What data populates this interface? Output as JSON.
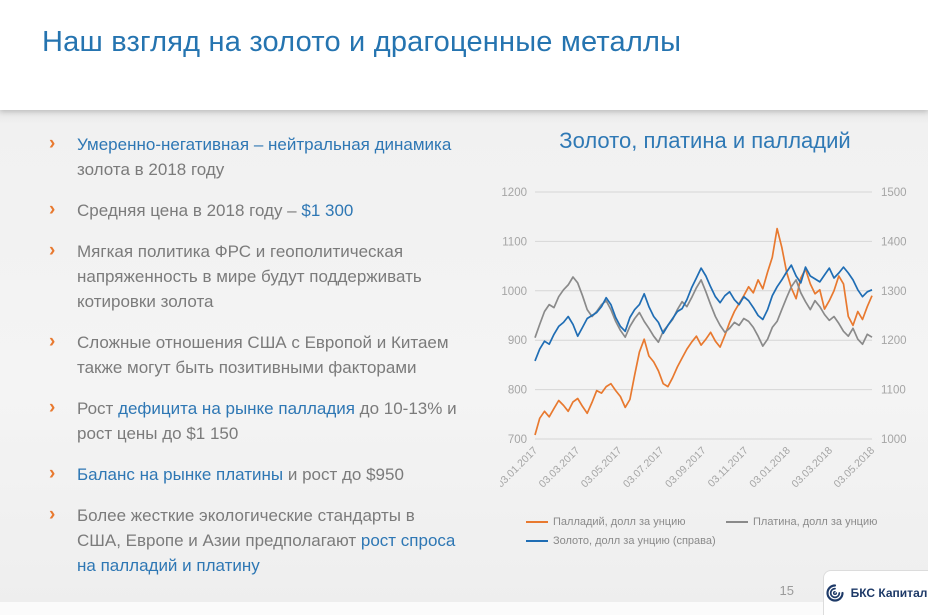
{
  "slide": {
    "title": "Наш взгляд на золото и драгоценные металлы",
    "page_number": "15",
    "logo_text": "БКС Капитал",
    "bullet_marker": "›"
  },
  "colors": {
    "accent_blue": "#2e77b4",
    "title_blue": "#2574b0",
    "text_gray": "#7b7b7b",
    "bullet_orange": "#e8792f",
    "logo_navy": "#1e3a68",
    "axis_label_gray": "#a5a5a5",
    "gridline_gray": "#d6d6d6"
  },
  "bullets": [
    {
      "segments": [
        {
          "t": "Умеренно-негативная – нейтральная динамика ",
          "c": "blue"
        },
        {
          "t": "золота в 2018 году",
          "c": "gray"
        }
      ]
    },
    {
      "segments": [
        {
          "t": "Средняя цена в 2018 году – ",
          "c": "gray"
        },
        {
          "t": "$1 300",
          "c": "blue"
        }
      ]
    },
    {
      "segments": [
        {
          "t": "Мягкая политика ФРС и геополитическая напряженность в мире будут поддерживать котировки золота",
          "c": "gray"
        }
      ]
    },
    {
      "segments": [
        {
          "t": "Сложные отношения США с Европой и Китаем также могут быть позитивными факторами",
          "c": "gray"
        }
      ]
    },
    {
      "segments": [
        {
          "t": "Рост ",
          "c": "gray"
        },
        {
          "t": "дефицита на рынке палладия",
          "c": "blue"
        },
        {
          "t": " до 10-13% и рост цены до $1 150",
          "c": "gray"
        }
      ]
    },
    {
      "segments": [
        {
          "t": "Баланс на рынке платины",
          "c": "blue"
        },
        {
          "t": " и рост до $950",
          "c": "gray"
        }
      ]
    },
    {
      "segments": [
        {
          "t": "Более жесткие экологические стандарты в США, Европе и Азии предполагают ",
          "c": "gray"
        },
        {
          "t": "рост спроса на палладий и платину",
          "c": "blue"
        }
      ]
    }
  ],
  "chart_data": {
    "type": "line",
    "title": "Золото, платина и палладий",
    "grid": true,
    "legend_position": "bottom",
    "x_tick_labels": [
      "03.01.2017",
      "03.03.2017",
      "03.05.2017",
      "03.07.2017",
      "03.09.2017",
      "03.11.2017",
      "03.01.2018",
      "03.03.2018",
      "03.05.2018"
    ],
    "left_axis": {
      "min": 700,
      "max": 1200,
      "ticks": [
        700,
        800,
        900,
        1000,
        1100,
        1200
      ]
    },
    "right_axis": {
      "min": 1000,
      "max": 1500,
      "ticks": [
        1000,
        1100,
        1200,
        1300,
        1400,
        1500
      ]
    },
    "series": [
      {
        "name": "Палладий, долл за унцию",
        "axis": "left",
        "color": "#e8792f",
        "values": [
          708,
          742,
          756,
          745,
          762,
          778,
          768,
          756,
          775,
          782,
          766,
          752,
          774,
          798,
          793,
          806,
          812,
          798,
          786,
          764,
          780,
          830,
          876,
          902,
          868,
          856,
          838,
          812,
          806,
          824,
          846,
          864,
          882,
          896,
          908,
          890,
          902,
          916,
          898,
          886,
          910,
          936,
          958,
          974,
          990,
          1008,
          996,
          1022,
          1004,
          1038,
          1068,
          1126,
          1088,
          1038,
          1006,
          984,
          1026,
          1044,
          1014,
          994,
          1002,
          963,
          980,
          1000,
          1030,
          1014,
          948,
          930,
          958,
          942,
          968,
          990
        ]
      },
      {
        "name": "Платина, долл за унцию",
        "axis": "left",
        "color": "#8a8a8a",
        "values": [
          905,
          932,
          958,
          972,
          966,
          988,
          1002,
          1012,
          1028,
          1016,
          990,
          962,
          948,
          958,
          972,
          980,
          962,
          938,
          920,
          906,
          928,
          944,
          956,
          938,
          924,
          908,
          896,
          918,
          930,
          942,
          962,
          978,
          968,
          986,
          1006,
          1022,
          998,
          972,
          948,
          930,
          916,
          924,
          936,
          930,
          944,
          938,
          926,
          908,
          888,
          902,
          926,
          938,
          962,
          986,
          1008,
          1022,
          996,
          978,
          962,
          980,
          968,
          952,
          940,
          948,
          934,
          918,
          908,
          924,
          902,
          892,
          912,
          906
        ]
      },
      {
        "name": "Золото, долл за унцию (справа)",
        "axis": "right",
        "color": "#1f6db4",
        "values": [
          1158,
          1182,
          1198,
          1192,
          1212,
          1228,
          1236,
          1248,
          1232,
          1208,
          1226,
          1244,
          1250,
          1256,
          1268,
          1286,
          1272,
          1246,
          1228,
          1218,
          1246,
          1262,
          1272,
          1294,
          1268,
          1248,
          1236,
          1214,
          1230,
          1244,
          1258,
          1264,
          1282,
          1306,
          1326,
          1346,
          1330,
          1308,
          1288,
          1276,
          1290,
          1298,
          1282,
          1272,
          1288,
          1280,
          1266,
          1250,
          1242,
          1262,
          1290,
          1308,
          1322,
          1338,
          1352,
          1330,
          1316,
          1348,
          1330,
          1324,
          1318,
          1332,
          1346,
          1326,
          1336,
          1348,
          1336,
          1322,
          1302,
          1288,
          1298,
          1302
        ]
      }
    ]
  }
}
